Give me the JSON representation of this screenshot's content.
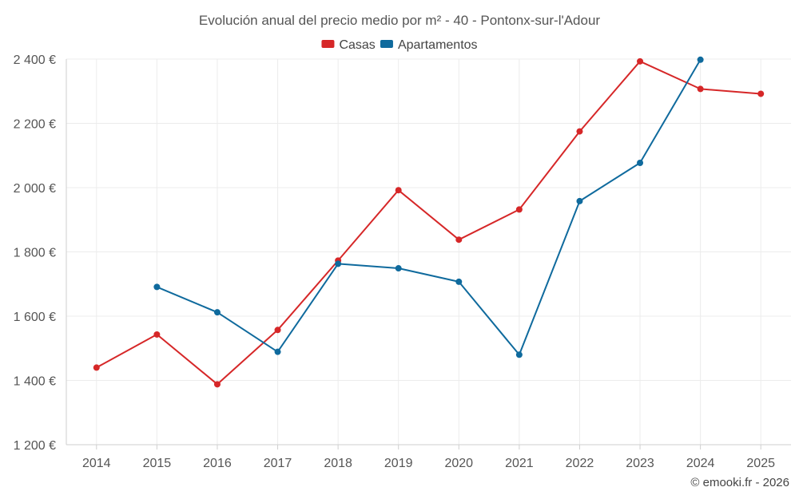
{
  "chart_data": {
    "type": "line",
    "title": "Evolución anual del precio medio por m² - 40 - Pontonx-sur-l'Adour",
    "categories": [
      "2014",
      "2015",
      "2016",
      "2017",
      "2018",
      "2019",
      "2020",
      "2021",
      "2022",
      "2023",
      "2024",
      "2025"
    ],
    "ylim": [
      1200,
      2400
    ],
    "yticks": [
      1200,
      1400,
      1600,
      1800,
      2000,
      2200,
      2400
    ],
    "ytick_labels": [
      "1 200 €",
      "1 400 €",
      "1 600 €",
      "1 800 €",
      "2 000 €",
      "2 200 €",
      "2 400 €"
    ],
    "grid": true,
    "legend_position": "top-center",
    "series": [
      {
        "name": "Casas",
        "color": "#d62728",
        "values": [
          1440,
          1543,
          1388,
          1557,
          1773,
          1992,
          1838,
          1932,
          2175,
          2393,
          2307,
          2292
        ]
      },
      {
        "name": "Apartamentos",
        "color": "#0f6a9d",
        "values": [
          null,
          1691,
          1612,
          1489,
          1763,
          1749,
          1707,
          1480,
          1958,
          2077,
          2398,
          null
        ]
      }
    ]
  },
  "credit": "© emooki.fr - 2026"
}
